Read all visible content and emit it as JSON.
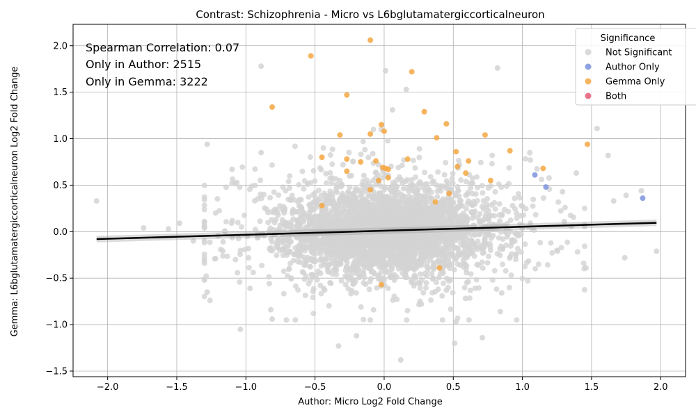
{
  "chart_data": {
    "type": "scatter",
    "title": "Contrast: Schizophrenia - Micro vs L6bglutamatergiccorticalneuron",
    "xlabel": "Author: Micro Log2 Fold Change",
    "ylabel": "Gemma: L6bglutamatergiccorticalneuron Log2 Fold Change",
    "xlim": [
      -2.25,
      2.18
    ],
    "ylim": [
      -1.56,
      2.23
    ],
    "xticks": [
      -2.0,
      -1.5,
      -1.0,
      -0.5,
      0.0,
      0.5,
      1.0,
      1.5,
      2.0
    ],
    "xtick_labels": [
      "−2.0",
      "−1.5",
      "−1.0",
      "−0.5",
      "0.0",
      "0.5",
      "1.0",
      "1.5",
      "2.0"
    ],
    "yticks": [
      -1.5,
      -1.0,
      -0.5,
      0.0,
      0.5,
      1.0,
      1.5,
      2.0
    ],
    "ytick_labels": [
      "−1.5",
      "−1.0",
      "−0.5",
      "0.0",
      "0.5",
      "1.0",
      "1.5",
      "2.0"
    ],
    "grid": true,
    "annotations": [
      "Spearman Correlation: 0.07",
      "Only in Author: 2515",
      "Only in Gemma: 3222"
    ],
    "regression_line": {
      "x": [
        -2.08,
        1.97
      ],
      "y": [
        -0.08,
        0.095
      ]
    },
    "legend": {
      "title": "Significance",
      "position": "top-right",
      "entries": [
        {
          "name": "Not Significant",
          "color": "#d3d3d3"
        },
        {
          "name": "Author Only",
          "color": "#7b93dd"
        },
        {
          "name": "Gemma Only",
          "color": "#f5a742"
        },
        {
          "name": "Both",
          "color": "#e05a75"
        }
      ]
    },
    "series": [
      {
        "name": "Gemma Only",
        "color": "#f5a742",
        "points": [
          [
            -0.1,
            2.06
          ],
          [
            -0.53,
            1.89
          ],
          [
            0.2,
            1.72
          ],
          [
            -0.27,
            1.47
          ],
          [
            -0.81,
            1.34
          ],
          [
            0.29,
            1.29
          ],
          [
            0.45,
            1.16
          ],
          [
            -0.02,
            1.15
          ],
          [
            0.0,
            1.08
          ],
          [
            -0.1,
            1.05
          ],
          [
            -0.32,
            1.04
          ],
          [
            0.73,
            1.04
          ],
          [
            0.38,
            1.01
          ],
          [
            1.47,
            0.94
          ],
          [
            0.91,
            0.87
          ],
          [
            0.52,
            0.86
          ],
          [
            -0.45,
            0.8
          ],
          [
            -0.27,
            0.78
          ],
          [
            0.17,
            0.78
          ],
          [
            -0.06,
            0.76
          ],
          [
            0.61,
            0.76
          ],
          [
            -0.17,
            0.75
          ],
          [
            0.53,
            0.7
          ],
          [
            -0.01,
            0.69
          ],
          [
            0.01,
            0.68
          ],
          [
            0.03,
            0.67
          ],
          [
            1.15,
            0.68
          ],
          [
            -0.27,
            0.65
          ],
          [
            0.59,
            0.63
          ],
          [
            0.03,
            0.58
          ],
          [
            -0.04,
            0.55
          ],
          [
            -0.1,
            0.45
          ],
          [
            0.47,
            0.41
          ],
          [
            -0.45,
            0.28
          ],
          [
            -0.02,
            -0.57
          ],
          [
            0.4,
            -0.39
          ],
          [
            0.77,
            0.55
          ],
          [
            0.37,
            0.32
          ]
        ]
      },
      {
        "name": "Author Only",
        "color": "#7b93dd",
        "points": [
          [
            1.09,
            0.61
          ],
          [
            1.17,
            0.48
          ],
          [
            1.87,
            0.36
          ]
        ]
      }
    ],
    "not_significant": {
      "name": "Not Significant",
      "color": "#d3d3d3",
      "outliers": [
        [
          -2.08,
          0.33
        ],
        [
          -1.28,
          0.94
        ],
        [
          -0.89,
          1.78
        ],
        [
          0.01,
          1.73
        ],
        [
          0.82,
          1.76
        ],
        [
          0.16,
          1.53
        ],
        [
          0.06,
          1.31
        ],
        [
          -0.89,
          0.85
        ],
        [
          -1.1,
          0.67
        ],
        [
          -1.1,
          0.52
        ],
        [
          1.54,
          1.11
        ],
        [
          1.62,
          0.82
        ],
        [
          1.86,
          0.44
        ],
        [
          1.39,
          0.63
        ],
        [
          -1.28,
          -0.65
        ],
        [
          -1.04,
          -1.05
        ],
        [
          -0.33,
          -1.23
        ],
        [
          -0.2,
          -1.12
        ],
        [
          0.12,
          -1.38
        ],
        [
          0.51,
          -1.2
        ],
        [
          0.71,
          -1.14
        ],
        [
          0.52,
          -0.97
        ],
        [
          -0.82,
          -0.84
        ],
        [
          -0.81,
          -0.94
        ],
        [
          0.84,
          -0.86
        ],
        [
          1.46,
          -0.39
        ],
        [
          1.97,
          -0.21
        ],
        [
          -1.74,
          0.04
        ],
        [
          -1.48,
          0.09
        ],
        [
          -1.56,
          0.03
        ],
        [
          -1.38,
          -0.1
        ],
        [
          -1.22,
          -0.29
        ],
        [
          -0.97,
          -0.61
        ],
        [
          1.74,
          -0.28
        ],
        [
          1.66,
          0.33
        ],
        [
          1.75,
          0.39
        ],
        [
          1.25,
          -0.2
        ],
        [
          1.29,
          0.43
        ],
        [
          0.85,
          -0.66
        ]
      ],
      "cloud": [
        {
          "cx": 0.0,
          "cy": 0.0,
          "sx": 0.33,
          "sy": 0.21,
          "n": 2400
        },
        {
          "cx": 0.05,
          "cy": 0.0,
          "sx": 0.55,
          "sy": 0.3,
          "n": 1100
        },
        {
          "cx": 0.0,
          "cy": 0.1,
          "sx": 0.5,
          "sy": 0.42,
          "n": 260
        }
      ]
    }
  }
}
